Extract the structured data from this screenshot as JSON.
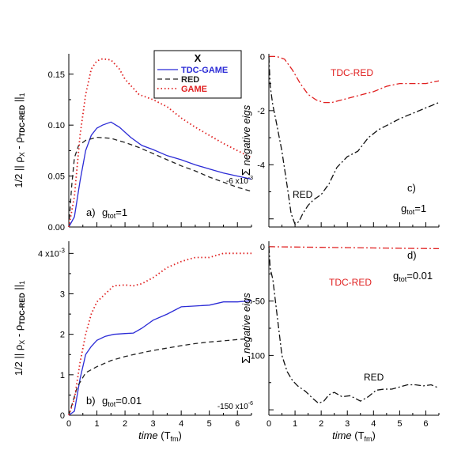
{
  "chart_data": [
    {
      "id": "a",
      "type": "line",
      "panel_label": "a)",
      "param_text": "g",
      "param_sub": "tot",
      "param_value": "=1",
      "ylabel_parts": [
        "1/2 || ρ",
        "X",
        " - ρ",
        "TDC-RED",
        " ||",
        "1"
      ],
      "xlim": [
        0,
        6.5
      ],
      "ylim": [
        0,
        0.17
      ],
      "yticks": [
        0,
        0.05,
        0.1,
        0.15
      ],
      "ytick_labels": [
        "0.00",
        "0.05",
        "0.10",
        "0.15"
      ],
      "xticks": [
        0,
        1,
        2,
        3,
        4,
        5,
        6
      ],
      "xtick_labels": [],
      "scale_note": "-6 x10",
      "scale_exp": "-3",
      "legend": {
        "title": "X",
        "entries": [
          {
            "label": "TDC-GAME",
            "color": "#2b2bd6",
            "dash": "solid"
          },
          {
            "label": "RED",
            "color": "#222222",
            "dash": "dash"
          },
          {
            "label": "GAME",
            "color": "#e02020",
            "dash": "dot"
          }
        ]
      },
      "series": [
        {
          "name": "TDC-GAME",
          "color": "#2b2bd6",
          "dash": "solid",
          "x": [
            0,
            0.2,
            0.4,
            0.6,
            0.8,
            1.0,
            1.2,
            1.5,
            1.8,
            2.2,
            2.6,
            3.0,
            3.5,
            4.0,
            4.5,
            5.0,
            5.5,
            6.0,
            6.5
          ],
          "y": [
            0,
            0.01,
            0.045,
            0.075,
            0.09,
            0.097,
            0.1,
            0.103,
            0.098,
            0.088,
            0.08,
            0.076,
            0.07,
            0.066,
            0.061,
            0.057,
            0.053,
            0.05,
            0.047
          ]
        },
        {
          "name": "RED",
          "color": "#222222",
          "dash": "dash",
          "x": [
            0,
            0.1,
            0.2,
            0.35,
            0.6,
            1.0,
            1.5,
            2.0,
            2.5,
            3.0,
            3.5,
            4.0,
            4.5,
            5.0,
            5.5,
            6.0,
            6.5
          ],
          "y": [
            0,
            0.04,
            0.068,
            0.08,
            0.085,
            0.088,
            0.087,
            0.083,
            0.078,
            0.072,
            0.066,
            0.06,
            0.055,
            0.049,
            0.044,
            0.039,
            0.035
          ]
        },
        {
          "name": "GAME",
          "color": "#e02020",
          "dash": "dot",
          "x": [
            0,
            0.2,
            0.4,
            0.6,
            0.8,
            1.0,
            1.2,
            1.5,
            1.8,
            2.0,
            2.5,
            3.0,
            3.5,
            4.0,
            4.5,
            5.0,
            5.5,
            6.0,
            6.5
          ],
          "y": [
            0,
            0.03,
            0.09,
            0.13,
            0.155,
            0.163,
            0.165,
            0.164,
            0.155,
            0.145,
            0.13,
            0.125,
            0.118,
            0.107,
            0.098,
            0.09,
            0.082,
            0.075,
            0.068
          ]
        }
      ]
    },
    {
      "id": "b",
      "type": "line",
      "panel_label": "b)",
      "param_text": "g",
      "param_sub": "tot",
      "param_value": "=0.01",
      "ylabel_parts": [
        "1/2 || ρ",
        "X",
        " - ρ",
        "TDC-RED",
        " ||",
        "1"
      ],
      "xlim": [
        0,
        6.5
      ],
      "ylim": [
        0,
        0.0043
      ],
      "yticks": [
        0,
        0.001,
        0.002,
        0.003,
        0.004
      ],
      "ytick_labels": [
        "0",
        "1",
        "2",
        "3",
        "4 x10"
      ],
      "ytick_top_exp": "-3",
      "xticks": [
        0,
        1,
        2,
        3,
        4,
        5,
        6
      ],
      "xtick_labels": [
        "0",
        "1",
        "2",
        "3",
        "4",
        "5",
        "6"
      ],
      "xlabel": "time (T",
      "xlabel_sub": "fm",
      "xlabel_end": ")",
      "scale_note": "-150 x10",
      "scale_exp": "-6",
      "series": [
        {
          "name": "TDC-GAME",
          "color": "#2b2bd6",
          "dash": "solid",
          "x": [
            0,
            0.2,
            0.4,
            0.6,
            0.8,
            1.0,
            1.3,
            1.6,
            2.0,
            2.3,
            2.6,
            3.0,
            3.5,
            4.0,
            4.5,
            5.0,
            5.5,
            6.0,
            6.5
          ],
          "y": [
            0,
            0.0001,
            0.0009,
            0.0015,
            0.0017,
            0.00185,
            0.00195,
            0.002,
            0.00202,
            0.00203,
            0.00215,
            0.00235,
            0.0025,
            0.00268,
            0.0027,
            0.00272,
            0.0028,
            0.0028,
            0.00283
          ]
        },
        {
          "name": "RED",
          "color": "#222222",
          "dash": "dash",
          "x": [
            0,
            0.3,
            0.6,
            1.0,
            1.5,
            2.0,
            2.5,
            3.0,
            3.5,
            4.0,
            4.5,
            5.0,
            5.5,
            6.0,
            6.5
          ],
          "y": [
            0,
            0.0007,
            0.00105,
            0.0012,
            0.00135,
            0.00145,
            0.00153,
            0.0016,
            0.00166,
            0.00172,
            0.00177,
            0.00181,
            0.00184,
            0.00187,
            0.0019
          ]
        },
        {
          "name": "GAME",
          "color": "#e02020",
          "dash": "dot",
          "x": [
            0,
            0.2,
            0.4,
            0.6,
            0.8,
            1.0,
            1.3,
            1.6,
            2.0,
            2.3,
            2.6,
            3.0,
            3.5,
            4.0,
            4.5,
            5.0,
            5.5,
            6.0,
            6.5
          ],
          "y": [
            0,
            0.0004,
            0.0013,
            0.002,
            0.0025,
            0.0028,
            0.003,
            0.0032,
            0.00322,
            0.0032,
            0.00325,
            0.0034,
            0.00365,
            0.0038,
            0.0039,
            0.0039,
            0.004,
            0.004,
            0.004
          ]
        }
      ]
    },
    {
      "id": "c",
      "type": "line",
      "panel_label": "c)",
      "param_text": "g",
      "param_sub": "tot",
      "param_value": "=1",
      "ylabel_parts": [
        "Σ",
        " negative eigs"
      ],
      "xlim": [
        0,
        6.5
      ],
      "ylim": [
        -0.0063,
        0.0001
      ],
      "yticks": [
        0,
        -0.002,
        -0.004
      ],
      "ytick_labels": [
        "0",
        "-2",
        "-4"
      ],
      "xticks": [
        0,
        1,
        2,
        3,
        4,
        5,
        6
      ],
      "xtick_labels": [],
      "annotations": [
        {
          "text": "TDC-RED",
          "color": "#e02020"
        },
        {
          "text": "RED",
          "color": "#000000"
        }
      ],
      "series": [
        {
          "name": "TDC-RED",
          "color": "#e02020",
          "dash": "dashdot",
          "x": [
            0,
            0.3,
            0.6,
            0.9,
            1.2,
            1.5,
            1.8,
            2.1,
            2.4,
            2.8,
            3.2,
            3.6,
            4.0,
            4.5,
            5.0,
            5.5,
            6.0,
            6.5
          ],
          "y": [
            0,
            0,
            -0.0001,
            -0.0005,
            -0.001,
            -0.0014,
            -0.0016,
            -0.0017,
            -0.0017,
            -0.0016,
            -0.0015,
            -0.0014,
            -0.0013,
            -0.0011,
            -0.001,
            -0.001,
            -0.001,
            -0.0009
          ]
        },
        {
          "name": "RED",
          "color": "#111111",
          "dash": "dashdot",
          "x": [
            0,
            0.05,
            0.15,
            0.3,
            0.5,
            0.7,
            0.85,
            1.0,
            1.15,
            1.3,
            1.5,
            1.7,
            2.0,
            2.3,
            2.6,
            3.0,
            3.4,
            3.8,
            4.2,
            4.6,
            5.0,
            5.5,
            6.0,
            6.5
          ],
          "y": [
            0,
            -0.0011,
            -0.0018,
            -0.0025,
            -0.0035,
            -0.0048,
            -0.0058,
            -0.0062,
            -0.0061,
            -0.0058,
            -0.0055,
            -0.0053,
            -0.0051,
            -0.0047,
            -0.0041,
            -0.0037,
            -0.0035,
            -0.003,
            -0.0027,
            -0.0025,
            -0.0023,
            -0.0021,
            -0.0019,
            -0.0017
          ]
        }
      ]
    },
    {
      "id": "d",
      "type": "line",
      "panel_label": "d)",
      "param_text": "g",
      "param_sub": "tot",
      "param_value": "=0.01",
      "ylabel_parts": [
        "Σ",
        " negative eigs"
      ],
      "xlim": [
        0,
        6.5
      ],
      "ylim": [
        -0.000155,
        5e-06
      ],
      "yticks": [
        0,
        -5e-05,
        -0.0001
      ],
      "ytick_labels": [
        "0",
        "-50",
        "-100"
      ],
      "xticks": [
        0,
        1,
        2,
        3,
        4,
        5,
        6
      ],
      "xtick_labels": [
        "0",
        "1",
        "2",
        "3",
        "4",
        "5",
        "6"
      ],
      "xlabel": "time (T",
      "xlabel_sub": "fm",
      "xlabel_end": ")",
      "annotations": [
        {
          "text": "TDC-RED",
          "color": "#e02020"
        },
        {
          "text": "RED",
          "color": "#000000"
        }
      ],
      "series": [
        {
          "name": "TDC-RED",
          "color": "#e02020",
          "dash": "dashdot",
          "x": [
            0,
            1,
            2,
            3,
            4,
            5,
            6,
            6.5
          ],
          "y": [
            0,
            -3e-07,
            -6e-07,
            -9e-07,
            -1.2e-06,
            -1.5e-06,
            -1.7e-06,
            -1.8e-06
          ]
        },
        {
          "name": "RED",
          "color": "#111111",
          "dash": "dashdot",
          "x": [
            0,
            0.05,
            0.15,
            0.3,
            0.5,
            0.7,
            0.9,
            1.1,
            1.4,
            1.7,
            1.9,
            2.1,
            2.3,
            2.5,
            2.8,
            3.1,
            3.5,
            3.8,
            4.1,
            4.4,
            4.7,
            5.0,
            5.3,
            5.6,
            5.9,
            6.2,
            6.5
          ],
          "y": [
            0,
            -2e-05,
            -3e-05,
            -6e-05,
            -0.0001,
            -0.000115,
            -0.000123,
            -0.000128,
            -0.000133,
            -0.00014,
            -0.000144,
            -0.000142,
            -0.000136,
            -0.000134,
            -0.000138,
            -0.000137,
            -0.000142,
            -0.000138,
            -0.000132,
            -0.000131,
            -0.000131,
            -0.000129,
            -0.000127,
            -0.000127,
            -0.000128,
            -0.000127,
            -0.00013
          ]
        }
      ]
    }
  ]
}
